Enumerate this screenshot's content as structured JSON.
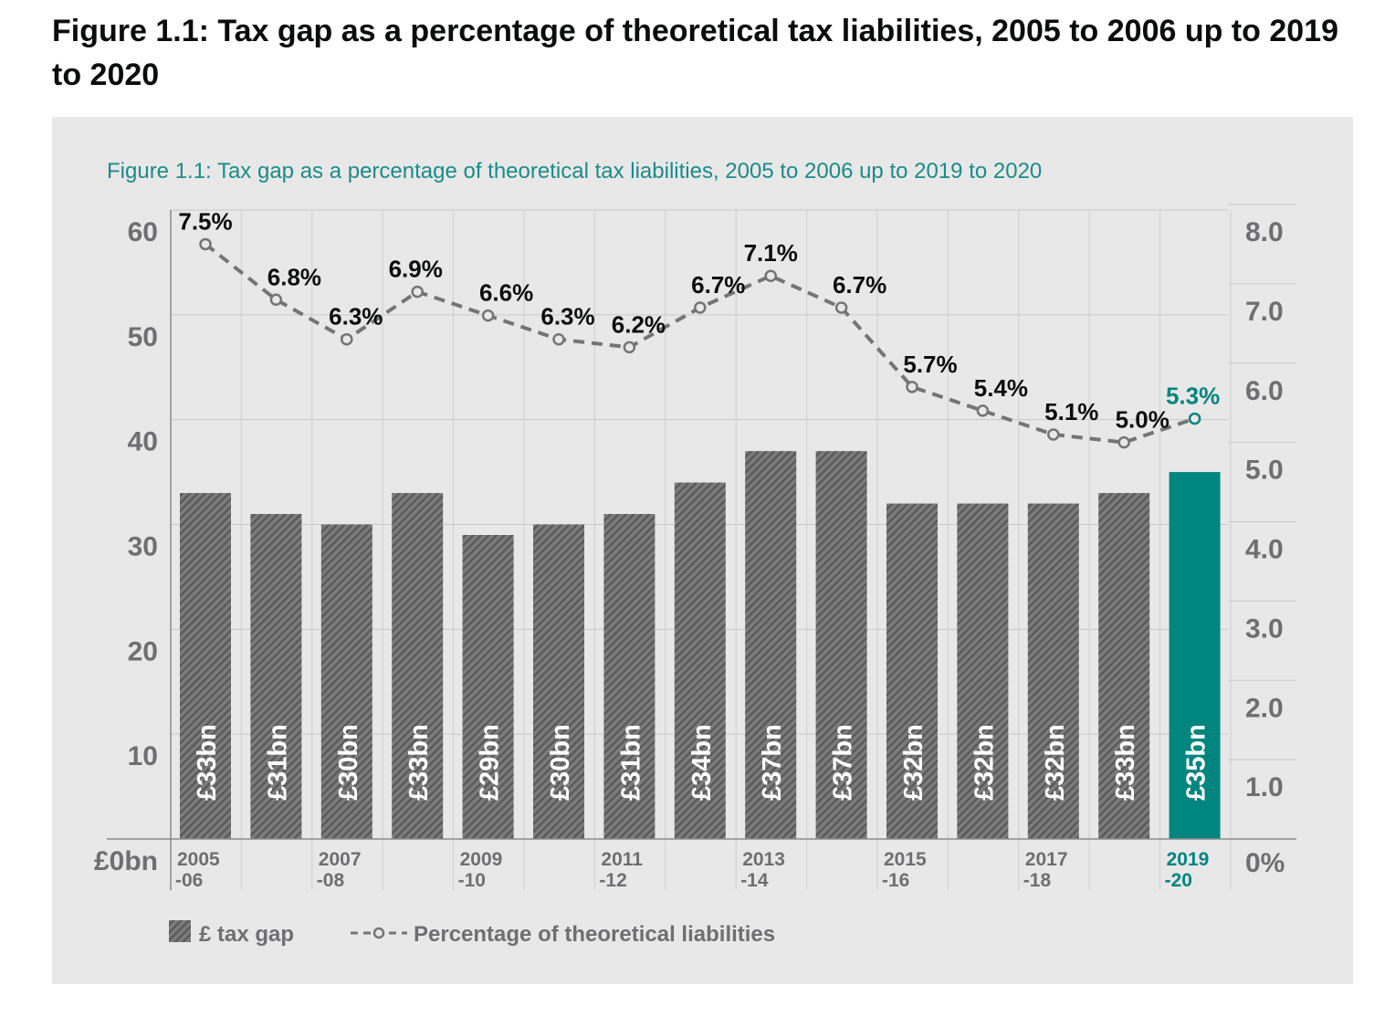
{
  "page_title": "Figure 1.1: Tax gap as a percentage of theoretical tax liabilities, 2005 to 2006 up to 2019 to 2020",
  "colors": {
    "background": "#e8e8e8",
    "bar": "#6f6f6f",
    "bar_highlight": "#00857f",
    "line": "#757575",
    "title": "#1a8c88",
    "axis_text": "#6f6f72"
  },
  "chart_data": {
    "type": "bar+line",
    "title": "Figure 1.1: Tax gap as a percentage of theoretical tax liabilities, 2005 to 2006 up to 2019 to 2020",
    "x_tick_labels": [
      [
        "2005",
        "-06"
      ],
      [
        "",
        ""
      ],
      [
        "2007",
        "-08"
      ],
      [
        "",
        ""
      ],
      [
        "2009",
        "-10"
      ],
      [
        "",
        ""
      ],
      [
        "2011",
        "-12"
      ],
      [
        "",
        ""
      ],
      [
        "2013",
        "-14"
      ],
      [
        "",
        ""
      ],
      [
        "2015",
        "-16"
      ],
      [
        "",
        ""
      ],
      [
        "2017",
        "-18"
      ],
      [
        "",
        ""
      ],
      [
        "2019",
        "-20"
      ]
    ],
    "series": [
      {
        "name": "£ tax gap",
        "type": "bar",
        "axis": "left",
        "values": [
          33,
          31,
          30,
          33,
          29,
          30,
          31,
          34,
          37,
          37,
          32,
          32,
          32,
          33,
          35
        ],
        "labels": [
          "£33bn",
          "£31bn",
          "£30bn",
          "£33bn",
          "£29bn",
          "£30bn",
          "£31bn",
          "£34bn",
          "£37bn",
          "£37bn",
          "£32bn",
          "£32bn",
          "£32bn",
          "£33bn",
          "£35bn"
        ]
      },
      {
        "name": "Percentage of theoretical liabilities",
        "type": "line",
        "axis": "right",
        "values": [
          7.5,
          6.8,
          6.3,
          6.9,
          6.6,
          6.3,
          6.2,
          6.7,
          7.1,
          6.7,
          5.7,
          5.4,
          5.1,
          5.0,
          5.3
        ],
        "labels": [
          "7.5%",
          "6.8%",
          "6.3%",
          "6.9%",
          "6.6%",
          "6.3%",
          "6.2%",
          "6.7%",
          "7.1%",
          "6.7%",
          "5.7%",
          "5.4%",
          "5.1%",
          "5.0%",
          "5.3%"
        ]
      }
    ],
    "highlight_index": 14,
    "left_axis": {
      "ylim": [
        0,
        60
      ],
      "ticks": [
        "£0bn",
        "10",
        "20",
        "30",
        "40",
        "50",
        "60"
      ]
    },
    "right_axis": {
      "ylim": [
        0,
        8
      ],
      "ticks": [
        "0%",
        "1.0",
        "2.0",
        "3.0",
        "4.0",
        "5.0",
        "6.0",
        "7.0",
        "8.0"
      ]
    },
    "grid": true,
    "legend_position": "bottom-left",
    "legend": [
      "£ tax gap",
      "Percentage of theoretical liabilities"
    ]
  }
}
